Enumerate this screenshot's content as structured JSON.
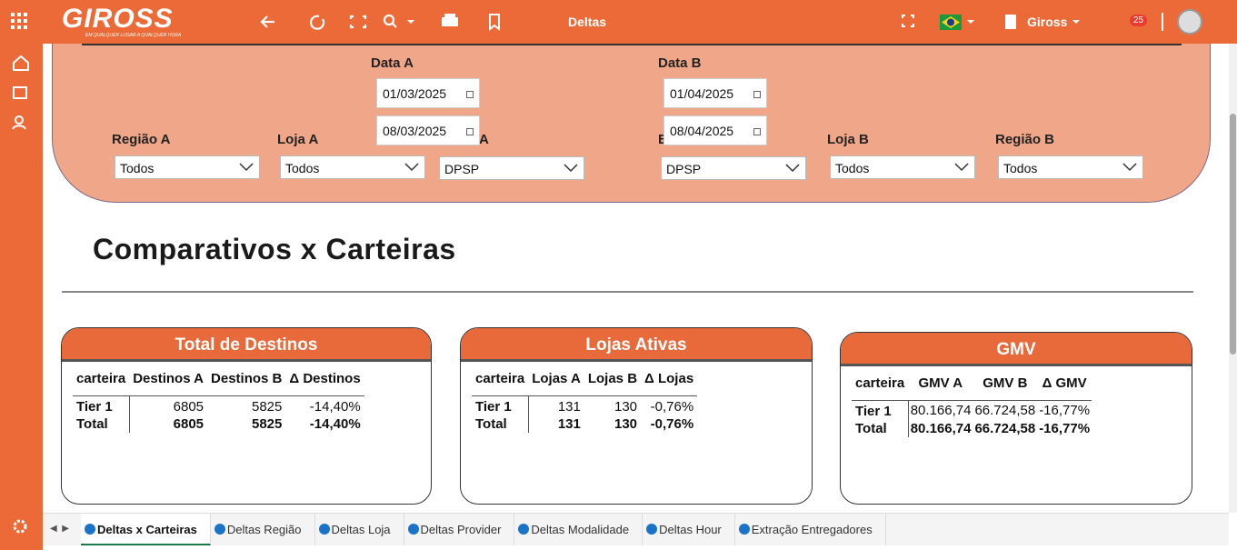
{
  "topbar": {
    "logo": "GIROSS",
    "tagline": "EM QUALQUER LUGAR A QUALQUER HORA",
    "page": "Deltas",
    "company": "Giross",
    "notifications": "25"
  },
  "filters": {
    "date_a_label": "Data A",
    "date_b_label": "Data B",
    "date_a_start": "01/03/2025",
    "date_a_end": "08/03/2025",
    "date_b_start": "01/04/2025",
    "date_b_end": "08/04/2025",
    "dropdowns": [
      {
        "label": "Região A",
        "value": "Todos"
      },
      {
        "label": "Loja A",
        "value": "Todos"
      },
      {
        "label": "Brand A",
        "value": "DPSP"
      },
      {
        "label": "Brand B",
        "value": "DPSP"
      },
      {
        "label": "Loja B",
        "value": "Todos"
      },
      {
        "label": "Região B",
        "value": "Todos"
      }
    ]
  },
  "heading": "Comparativos x Carteiras",
  "cards": [
    {
      "title": "Total de Destinos",
      "columns": [
        "carteira",
        "Destinos A",
        "Destinos B",
        "Δ Destinos"
      ],
      "rows": [
        [
          "Tier 1",
          "6805",
          "5825",
          "-14,40%"
        ],
        [
          "Total",
          "6805",
          "5825",
          "-14,40%"
        ]
      ]
    },
    {
      "title": "Lojas Ativas",
      "columns": [
        "carteira",
        "Lojas A",
        "Lojas B",
        "Δ Lojas"
      ],
      "rows": [
        [
          "Tier 1",
          "131",
          "130",
          "-0,76%"
        ],
        [
          "Total",
          "131",
          "130",
          "-0,76%"
        ]
      ]
    },
    {
      "title": "GMV",
      "columns": [
        "carteira",
        "GMV A",
        "GMV B",
        "Δ GMV"
      ],
      "rows": [
        [
          "Tier 1",
          "80.166,74",
          "66.724,58",
          "-16,77%"
        ],
        [
          "Total",
          "80.166,74",
          "66.724,58",
          "-16,77%"
        ]
      ]
    }
  ],
  "tabs": [
    "Deltas x Carteiras",
    "Deltas Região",
    "Deltas Loja",
    "Deltas Provider",
    "Deltas Modalidade",
    "Deltas Hour",
    "Extração Entregadores"
  ]
}
